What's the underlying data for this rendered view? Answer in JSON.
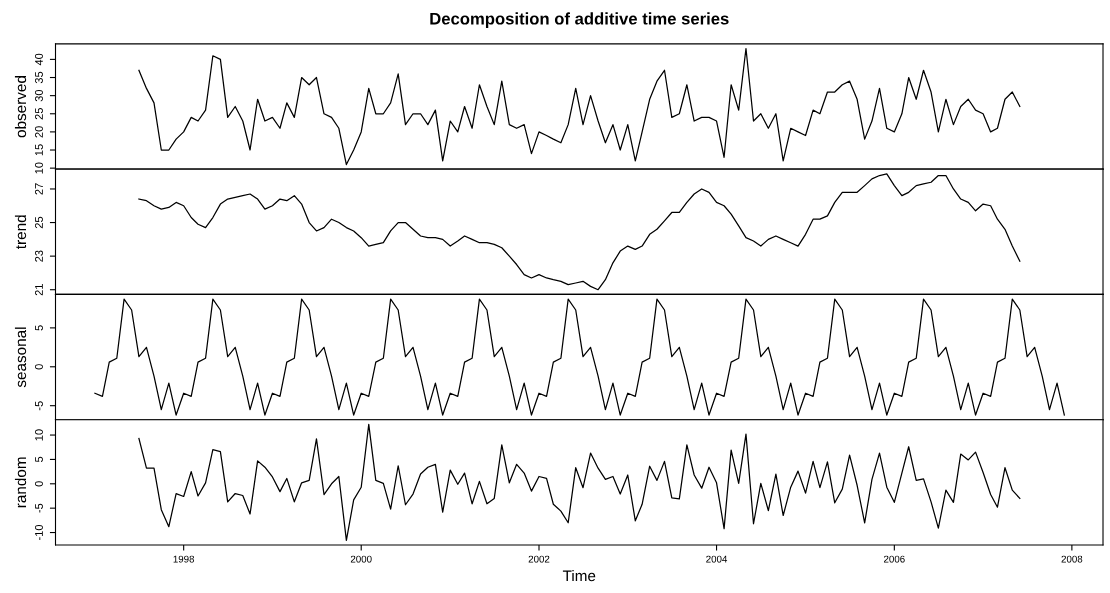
{
  "chart_data": [
    {
      "type": "line",
      "title": "Decomposition of additive time series",
      "ylabel": "observed",
      "xlim": [
        "1996-07-23",
        "2008-05-08"
      ],
      "ylim": [
        9.72,
        44.28
      ],
      "yticks": [
        10,
        15,
        20,
        25,
        30,
        35,
        40
      ],
      "tick_labels": "y",
      "grid": false,
      "x": [
        "1997-07",
        "1997-08",
        "1997-09",
        "1997-10",
        "1997-11",
        "1997-12",
        "1998-01",
        "1998-02",
        "1998-03",
        "1998-04",
        "1998-05",
        "1998-06",
        "1998-07",
        "1998-08",
        "1998-09",
        "1998-10",
        "1998-11",
        "1998-12",
        "1999-01",
        "1999-02",
        "1999-03",
        "1999-04",
        "1999-05",
        "1999-06",
        "1999-07",
        "1999-08",
        "1999-09",
        "1999-10",
        "1999-11",
        "1999-12",
        "2000-01",
        "2000-02",
        "2000-03",
        "2000-04",
        "2000-05",
        "2000-06",
        "2000-07",
        "2000-08",
        "2000-09",
        "2000-10",
        "2000-11",
        "2000-12",
        "2001-01",
        "2001-02",
        "2001-03",
        "2001-04",
        "2001-05",
        "2001-06",
        "2001-07",
        "2001-08",
        "2001-09",
        "2001-10",
        "2001-11",
        "2001-12",
        "2002-01",
        "2002-02",
        "2002-03",
        "2002-04",
        "2002-05",
        "2002-06",
        "2002-07",
        "2002-08",
        "2002-09",
        "2002-10",
        "2002-11",
        "2002-12",
        "2003-01",
        "2003-02",
        "2003-03",
        "2003-04",
        "2003-05",
        "2003-06",
        "2003-07",
        "2003-08",
        "2003-09",
        "2003-10",
        "2003-11",
        "2003-12",
        "2004-01",
        "2004-02",
        "2004-03",
        "2004-04",
        "2004-05",
        "2004-06",
        "2004-07",
        "2004-08",
        "2004-09",
        "2004-10",
        "2004-11",
        "2004-12",
        "2005-01",
        "2005-02",
        "2005-03",
        "2005-04",
        "2005-05",
        "2005-06",
        "2005-07",
        "2005-08",
        "2005-09",
        "2005-10",
        "2005-11",
        "2005-12",
        "2006-01",
        "2006-02",
        "2006-03",
        "2006-04",
        "2006-05",
        "2006-06",
        "2006-07",
        "2006-08",
        "2006-09",
        "2006-10",
        "2006-11",
        "2006-12",
        "2007-01",
        "2007-02",
        "2007-03",
        "2007-04",
        "2007-05",
        "2007-06"
      ],
      "series": [
        {
          "color": "#000000",
          "values": [
            37,
            32,
            28,
            15,
            15,
            18,
            20,
            24,
            23,
            26,
            41,
            40,
            24,
            27,
            23,
            15,
            29,
            23,
            24,
            21,
            28,
            24,
            35,
            33,
            35,
            25,
            24,
            21,
            11,
            15,
            20,
            32,
            25,
            25,
            28,
            36,
            22,
            25,
            25,
            22,
            26,
            12,
            23,
            20,
            27,
            21,
            33,
            27,
            22,
            34,
            22,
            21,
            22,
            14,
            20,
            19,
            18,
            17,
            22,
            32,
            22,
            30,
            23,
            17,
            22,
            15,
            22,
            12,
            20,
            29,
            34,
            37,
            24,
            25,
            33,
            23,
            24,
            24,
            23,
            13,
            33,
            26,
            43,
            23,
            25,
            21,
            25,
            12,
            21,
            20,
            19,
            26,
            25,
            31,
            31,
            33,
            34,
            29,
            18,
            23,
            32,
            21,
            20,
            25,
            35,
            29,
            37,
            31,
            20,
            29,
            22,
            27,
            29,
            26,
            25,
            20,
            21,
            29,
            31,
            27
          ]
        }
      ]
    },
    {
      "type": "line",
      "ylabel": "trend",
      "xlim": [
        "1996-07-23",
        "2008-05-08"
      ],
      "ylim": [
        20.72,
        28.18
      ],
      "yticks": [
        21,
        23,
        25,
        27
      ],
      "tick_labels": "y",
      "grid": false,
      "x": [
        "1997-07",
        "1997-08",
        "1997-09",
        "1997-10",
        "1997-11",
        "1997-12",
        "1998-01",
        "1998-02",
        "1998-03",
        "1998-04",
        "1998-05",
        "1998-06",
        "1998-07",
        "1998-08",
        "1998-09",
        "1998-10",
        "1998-11",
        "1998-12",
        "1999-01",
        "1999-02",
        "1999-03",
        "1999-04",
        "1999-05",
        "1999-06",
        "1999-07",
        "1999-08",
        "1999-09",
        "1999-10",
        "1999-11",
        "1999-12",
        "2000-01",
        "2000-02",
        "2000-03",
        "2000-04",
        "2000-05",
        "2000-06",
        "2000-07",
        "2000-08",
        "2000-09",
        "2000-10",
        "2000-11",
        "2000-12",
        "2001-01",
        "2001-02",
        "2001-03",
        "2001-04",
        "2001-05",
        "2001-06",
        "2001-07",
        "2001-08",
        "2001-09",
        "2001-10",
        "2001-11",
        "2001-12",
        "2002-01",
        "2002-02",
        "2002-03",
        "2002-04",
        "2002-05",
        "2002-06",
        "2002-07",
        "2002-08",
        "2002-09",
        "2002-10",
        "2002-11",
        "2002-12",
        "2003-01",
        "2003-02",
        "2003-03",
        "2003-04",
        "2003-05",
        "2003-06",
        "2003-07",
        "2003-08",
        "2003-09",
        "2003-10",
        "2003-11",
        "2003-12",
        "2004-01",
        "2004-02",
        "2004-03",
        "2004-04",
        "2004-05",
        "2004-06",
        "2004-07",
        "2004-08",
        "2004-09",
        "2004-10",
        "2004-11",
        "2004-12",
        "2005-01",
        "2005-02",
        "2005-03",
        "2005-04",
        "2005-05",
        "2005-06",
        "2005-07",
        "2005-08",
        "2005-09",
        "2005-10",
        "2005-11",
        "2005-12",
        "2006-01",
        "2006-02",
        "2006-03",
        "2006-04",
        "2006-05",
        "2006-06",
        "2006-07",
        "2006-08",
        "2006-09",
        "2006-10",
        "2006-11",
        "2006-12",
        "2007-01",
        "2007-02",
        "2007-03",
        "2007-04",
        "2007-05",
        "2007-06"
      ],
      "series": [
        {
          "color": "#000000",
          "values": [
            26.4,
            26.3,
            26.0,
            25.8,
            25.9,
            26.2,
            26.0,
            25.3,
            24.9,
            24.7,
            25.3,
            26.1,
            26.4,
            26.5,
            26.6,
            26.7,
            26.4,
            25.8,
            26.0,
            26.4,
            26.3,
            26.6,
            26.1,
            25.0,
            24.5,
            24.7,
            25.2,
            25.0,
            24.7,
            24.5,
            24.1,
            23.6,
            23.7,
            23.8,
            24.5,
            25.0,
            25.0,
            24.6,
            24.2,
            24.1,
            24.1,
            24.0,
            23.6,
            23.9,
            24.2,
            24.0,
            23.8,
            23.8,
            23.7,
            23.5,
            23.0,
            22.5,
            21.9,
            21.7,
            21.9,
            21.7,
            21.6,
            21.5,
            21.3,
            21.4,
            21.5,
            21.2,
            21.0,
            21.6,
            22.6,
            23.3,
            23.6,
            23.4,
            23.6,
            24.3,
            24.6,
            25.1,
            25.6,
            25.6,
            26.2,
            26.7,
            27.0,
            26.8,
            26.2,
            26.0,
            25.5,
            24.8,
            24.1,
            23.9,
            23.6,
            24.0,
            24.2,
            24.0,
            23.8,
            23.6,
            24.3,
            25.2,
            25.2,
            25.4,
            26.2,
            26.8,
            26.8,
            26.8,
            27.2,
            27.6,
            27.8,
            27.9,
            27.2,
            26.6,
            26.8,
            27.2,
            27.3,
            27.4,
            27.8,
            27.8,
            27.0,
            26.4,
            26.2,
            25.7,
            26.1,
            26.0,
            25.2,
            24.6,
            23.6,
            22.7
          ]
        }
      ]
    },
    {
      "type": "line",
      "ylabel": "seasonal",
      "xlim": [
        "1996-07-23",
        "2008-05-08"
      ],
      "ylim": [
        -6.8,
        9.3
      ],
      "yticks": [
        -5,
        0,
        5
      ],
      "tick_labels": "y",
      "grid": false,
      "x": [
        "1997-01",
        "1997-02",
        "1997-03",
        "1997-04",
        "1997-05",
        "1997-06",
        "1997-07",
        "1997-08",
        "1997-09",
        "1997-10",
        "1997-11",
        "1997-12",
        "1998-01",
        "1998-02",
        "1998-03",
        "1998-04",
        "1998-05",
        "1998-06",
        "1998-07",
        "1998-08",
        "1998-09",
        "1998-10",
        "1998-11",
        "1998-12",
        "1999-01",
        "1999-02",
        "1999-03",
        "1999-04",
        "1999-05",
        "1999-06",
        "1999-07",
        "1999-08",
        "1999-09",
        "1999-10",
        "1999-11",
        "1999-12",
        "2000-01",
        "2000-02",
        "2000-03",
        "2000-04",
        "2000-05",
        "2000-06",
        "2000-07",
        "2000-08",
        "2000-09",
        "2000-10",
        "2000-11",
        "2000-12",
        "2001-01",
        "2001-02",
        "2001-03",
        "2001-04",
        "2001-05",
        "2001-06",
        "2001-07",
        "2001-08",
        "2001-09",
        "2001-10",
        "2001-11",
        "2001-12",
        "2002-01",
        "2002-02",
        "2002-03",
        "2002-04",
        "2002-05",
        "2002-06",
        "2002-07",
        "2002-08",
        "2002-09",
        "2002-10",
        "2002-11",
        "2002-12",
        "2003-01",
        "2003-02",
        "2003-03",
        "2003-04",
        "2003-05",
        "2003-06",
        "2003-07",
        "2003-08",
        "2003-09",
        "2003-10",
        "2003-11",
        "2003-12",
        "2004-01",
        "2004-02",
        "2004-03",
        "2004-04",
        "2004-05",
        "2004-06",
        "2004-07",
        "2004-08",
        "2004-09",
        "2004-10",
        "2004-11",
        "2004-12",
        "2005-01",
        "2005-02",
        "2005-03",
        "2005-04",
        "2005-05",
        "2005-06",
        "2005-07",
        "2005-08",
        "2005-09",
        "2005-10",
        "2005-11",
        "2005-12",
        "2006-01",
        "2006-02",
        "2006-03",
        "2006-04",
        "2006-05",
        "2006-06",
        "2006-07",
        "2006-08",
        "2006-09",
        "2006-10",
        "2006-11",
        "2006-12",
        "2007-01",
        "2007-02",
        "2007-03",
        "2007-04",
        "2007-05",
        "2007-06",
        "2007-07",
        "2007-08",
        "2007-09",
        "2007-10",
        "2007-11",
        "2007-12"
      ],
      "series": [
        {
          "color": "#000000",
          "values": [
            -3.4,
            -3.8,
            0.6,
            1.1,
            8.7,
            7.3,
            1.3,
            2.5,
            -1.2,
            -5.5,
            -2.1,
            -6.2,
            -3.4,
            -3.8,
            0.6,
            1.1,
            8.7,
            7.3,
            1.3,
            2.5,
            -1.2,
            -5.5,
            -2.1,
            -6.2,
            -3.4,
            -3.8,
            0.6,
            1.1,
            8.7,
            7.3,
            1.3,
            2.5,
            -1.2,
            -5.5,
            -2.1,
            -6.2,
            -3.4,
            -3.8,
            0.6,
            1.1,
            8.7,
            7.3,
            1.3,
            2.5,
            -1.2,
            -5.5,
            -2.1,
            -6.2,
            -3.4,
            -3.8,
            0.6,
            1.1,
            8.7,
            7.3,
            1.3,
            2.5,
            -1.2,
            -5.5,
            -2.1,
            -6.2,
            -3.4,
            -3.8,
            0.6,
            1.1,
            8.7,
            7.3,
            1.3,
            2.5,
            -1.2,
            -5.5,
            -2.1,
            -6.2,
            -3.4,
            -3.8,
            0.6,
            1.1,
            8.7,
            7.3,
            1.3,
            2.5,
            -1.2,
            -5.5,
            -2.1,
            -6.2,
            -3.4,
            -3.8,
            0.6,
            1.1,
            8.7,
            7.3,
            1.3,
            2.5,
            -1.2,
            -5.5,
            -2.1,
            -6.2,
            -3.4,
            -3.8,
            0.6,
            1.1,
            8.7,
            7.3,
            1.3,
            2.5,
            -1.2,
            -5.5,
            -2.1,
            -6.2,
            -3.4,
            -3.8,
            0.6,
            1.1,
            8.7,
            7.3,
            1.3,
            2.5,
            -1.2,
            -5.5,
            -2.1,
            -6.2,
            -3.4,
            -3.8,
            0.6,
            1.1,
            8.7,
            7.3,
            1.3,
            2.5,
            -1.2,
            -5.5,
            -2.1,
            -6.2
          ]
        }
      ]
    },
    {
      "type": "line",
      "ylabel": "random",
      "xlabel": "Time",
      "xlim": [
        "1996-07-23",
        "2008-05-08"
      ],
      "xticks": [
        "1998",
        "2000",
        "2002",
        "2004",
        "2006",
        "2008"
      ],
      "ylim": [
        -12.55,
        13.15
      ],
      "yticks": [
        -10,
        -5,
        0,
        5,
        10
      ],
      "grid": false,
      "x": [
        "1997-07",
        "1997-08",
        "1997-09",
        "1997-10",
        "1997-11",
        "1997-12",
        "1998-01",
        "1998-02",
        "1998-03",
        "1998-04",
        "1998-05",
        "1998-06",
        "1998-07",
        "1998-08",
        "1998-09",
        "1998-10",
        "1998-11",
        "1998-12",
        "1999-01",
        "1999-02",
        "1999-03",
        "1999-04",
        "1999-05",
        "1999-06",
        "1999-07",
        "1999-08",
        "1999-09",
        "1999-10",
        "1999-11",
        "1999-12",
        "2000-01",
        "2000-02",
        "2000-03",
        "2000-04",
        "2000-05",
        "2000-06",
        "2000-07",
        "2000-08",
        "2000-09",
        "2000-10",
        "2000-11",
        "2000-12",
        "2001-01",
        "2001-02",
        "2001-03",
        "2001-04",
        "2001-05",
        "2001-06",
        "2001-07",
        "2001-08",
        "2001-09",
        "2001-10",
        "2001-11",
        "2001-12",
        "2002-01",
        "2002-02",
        "2002-03",
        "2002-04",
        "2002-05",
        "2002-06",
        "2002-07",
        "2002-08",
        "2002-09",
        "2002-10",
        "2002-11",
        "2002-12",
        "2003-01",
        "2003-02",
        "2003-03",
        "2003-04",
        "2003-05",
        "2003-06",
        "2003-07",
        "2003-08",
        "2003-09",
        "2003-10",
        "2003-11",
        "2003-12",
        "2004-01",
        "2004-02",
        "2004-03",
        "2004-04",
        "2004-05",
        "2004-06",
        "2004-07",
        "2004-08",
        "2004-09",
        "2004-10",
        "2004-11",
        "2004-12",
        "2005-01",
        "2005-02",
        "2005-03",
        "2005-04",
        "2005-05",
        "2005-06",
        "2005-07",
        "2005-08",
        "2005-09",
        "2005-10",
        "2005-11",
        "2005-12",
        "2006-01",
        "2006-02",
        "2006-03",
        "2006-04",
        "2006-05",
        "2006-06",
        "2006-07",
        "2006-08",
        "2006-09",
        "2006-10",
        "2006-11",
        "2006-12",
        "2007-01",
        "2007-02",
        "2007-03",
        "2007-04",
        "2007-05",
        "2007-06"
      ],
      "series": [
        {
          "color": "#000000",
          "values": [
            9.3,
            3.2,
            3.2,
            -5.3,
            -8.8,
            -2.0,
            -2.6,
            2.5,
            -2.5,
            0.2,
            7.0,
            6.6,
            -3.7,
            -2.0,
            -2.4,
            -6.2,
            4.7,
            3.4,
            1.4,
            -1.6,
            1.1,
            -3.7,
            0.2,
            0.7,
            9.2,
            -2.2,
            0.0,
            1.5,
            -11.6,
            -3.3,
            -0.7,
            12.2,
            0.7,
            0.1,
            -5.2,
            3.7,
            -4.3,
            -2.1,
            2.0,
            3.4,
            4.0,
            -5.8,
            2.8,
            -0.1,
            2.2,
            -4.1,
            0.5,
            -4.1,
            -3.0,
            8.0,
            0.2,
            4.0,
            2.2,
            -1.5,
            1.5,
            1.1,
            -4.2,
            -5.6,
            -8.0,
            3.3,
            -0.8,
            6.3,
            3.2,
            0.9,
            1.5,
            -2.1,
            1.8,
            -7.6,
            -4.2,
            3.6,
            0.7,
            4.6,
            -2.9,
            -3.1,
            8.0,
            1.8,
            -0.9,
            3.4,
            0.2,
            -9.2,
            6.9,
            0.1,
            10.2,
            -8.2,
            0.1,
            -5.5,
            2.0,
            -6.5,
            -0.7,
            2.6,
            -1.9,
            4.6,
            -0.8,
            4.5,
            -3.9,
            -1.1,
            5.9,
            -0.3,
            -8.0,
            0.9,
            6.3,
            -0.7,
            -3.8,
            2.2,
            7.6,
            0.7,
            1.0,
            -3.7,
            -9.1,
            -1.3,
            -3.8,
            6.1,
            4.9,
            6.5,
            2.3,
            -2.2,
            -4.8,
            3.3,
            -1.3,
            -3.0
          ]
        }
      ]
    }
  ]
}
